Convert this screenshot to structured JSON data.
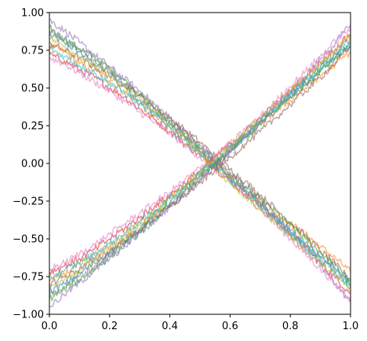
{
  "chart_data": {
    "type": "line",
    "title": "",
    "xlabel": "",
    "ylabel": "",
    "xlim": [
      0,
      1
    ],
    "ylim": [
      -1,
      1
    ],
    "grid": false,
    "legend": "none",
    "line_alpha": 0.55,
    "x_ticks": [
      {
        "value": 0.0,
        "label": "0.0"
      },
      {
        "value": 0.2,
        "label": "0.2"
      },
      {
        "value": 0.4,
        "label": "0.4"
      },
      {
        "value": 0.6,
        "label": "0.6"
      },
      {
        "value": 0.8,
        "label": "0.8"
      },
      {
        "value": 1.0,
        "label": "1.0"
      }
    ],
    "y_ticks": [
      {
        "value": -1.0,
        "label": "−1.00"
      },
      {
        "value": -0.75,
        "label": "−0.75"
      },
      {
        "value": -0.5,
        "label": "−0.50"
      },
      {
        "value": -0.25,
        "label": "−0.25"
      },
      {
        "value": 0.0,
        "label": "0.00"
      },
      {
        "value": 0.25,
        "label": "0.25"
      },
      {
        "value": 0.5,
        "label": "0.50"
      },
      {
        "value": 0.75,
        "label": "0.75"
      },
      {
        "value": 1.0,
        "label": "1.00"
      }
    ],
    "x": [
      0.0,
      0.05,
      0.1,
      0.15,
      0.2,
      0.25,
      0.3,
      0.35,
      0.4,
      0.45,
      0.5,
      0.55,
      0.6,
      0.65,
      0.7,
      0.75,
      0.8,
      0.85,
      0.9,
      0.95,
      1.0
    ],
    "series": [
      {
        "color": "#1f77b4",
        "values": [
          0.85,
          0.8,
          0.74,
          0.66,
          0.6,
          0.51,
          0.42,
          0.34,
          0.26,
          0.17,
          0.08,
          0.0,
          -0.1,
          -0.18,
          -0.26,
          -0.35,
          -0.45,
          -0.54,
          -0.62,
          -0.7,
          -0.78
        ]
      },
      {
        "color": "#ff7f0e",
        "values": [
          0.78,
          0.74,
          0.66,
          0.62,
          0.55,
          0.47,
          0.4,
          0.31,
          0.24,
          0.16,
          0.08,
          -0.01,
          -0.08,
          -0.17,
          -0.25,
          -0.33,
          -0.4,
          -0.47,
          -0.55,
          -0.63,
          -0.72
        ]
      },
      {
        "color": "#2ca02c",
        "values": [
          0.9,
          0.82,
          0.76,
          0.7,
          0.63,
          0.55,
          0.46,
          0.37,
          0.28,
          0.2,
          0.1,
          0.02,
          -0.07,
          -0.15,
          -0.24,
          -0.32,
          -0.41,
          -0.5,
          -0.59,
          -0.68,
          -0.8
        ]
      },
      {
        "color": "#d62728",
        "values": [
          0.72,
          0.68,
          0.62,
          0.57,
          0.5,
          0.44,
          0.36,
          0.29,
          0.21,
          0.13,
          0.05,
          -0.03,
          -0.12,
          -0.2,
          -0.29,
          -0.38,
          -0.47,
          -0.56,
          -0.66,
          -0.76,
          -0.86
        ]
      },
      {
        "color": "#9467bd",
        "values": [
          0.95,
          0.88,
          0.8,
          0.72,
          0.64,
          0.56,
          0.48,
          0.39,
          0.3,
          0.21,
          0.12,
          0.03,
          -0.06,
          -0.16,
          -0.26,
          -0.36,
          -0.46,
          -0.57,
          -0.68,
          -0.8,
          -0.92
        ]
      },
      {
        "color": "#8c564b",
        "values": [
          0.8,
          0.75,
          0.7,
          0.64,
          0.58,
          0.52,
          0.45,
          0.37,
          0.3,
          0.22,
          0.14,
          0.05,
          -0.04,
          -0.12,
          -0.21,
          -0.3,
          -0.39,
          -0.48,
          -0.58,
          -0.67,
          -0.77
        ]
      },
      {
        "color": "#e377c2",
        "values": [
          0.7,
          0.66,
          0.6,
          0.54,
          0.48,
          0.41,
          0.34,
          0.27,
          0.2,
          0.12,
          0.04,
          -0.04,
          -0.12,
          -0.21,
          -0.3,
          -0.4,
          -0.5,
          -0.6,
          -0.7,
          -0.8,
          -0.9
        ]
      },
      {
        "color": "#7f7f7f",
        "values": [
          0.88,
          0.83,
          0.76,
          0.69,
          0.61,
          0.53,
          0.45,
          0.36,
          0.27,
          0.18,
          0.1,
          0.01,
          -0.09,
          -0.18,
          -0.27,
          -0.36,
          -0.44,
          -0.53,
          -0.62,
          -0.72,
          -0.82
        ]
      },
      {
        "color": "#bcbd22",
        "values": [
          0.83,
          0.78,
          0.71,
          0.65,
          0.58,
          0.5,
          0.43,
          0.35,
          0.25,
          0.16,
          0.06,
          -0.03,
          -0.13,
          -0.22,
          -0.31,
          -0.39,
          -0.48,
          -0.57,
          -0.66,
          -0.74,
          -0.84
        ]
      },
      {
        "color": "#17becf",
        "values": [
          0.76,
          0.71,
          0.65,
          0.6,
          0.53,
          0.47,
          0.39,
          0.32,
          0.24,
          0.15,
          0.07,
          -0.02,
          -0.11,
          -0.19,
          -0.28,
          -0.37,
          -0.46,
          -0.55,
          -0.64,
          -0.72,
          -0.81
        ]
      },
      {
        "color": "#1f77b4",
        "values": [
          -0.85,
          -0.8,
          -0.73,
          -0.66,
          -0.59,
          -0.51,
          -0.43,
          -0.34,
          -0.26,
          -0.17,
          -0.08,
          0.0,
          0.09,
          0.18,
          0.26,
          0.35,
          0.44,
          0.52,
          0.61,
          0.7,
          0.78
        ]
      },
      {
        "color": "#ff7f0e",
        "values": [
          -0.78,
          -0.73,
          -0.67,
          -0.61,
          -0.55,
          -0.47,
          -0.39,
          -0.31,
          -0.23,
          -0.15,
          -0.07,
          0.02,
          0.1,
          0.18,
          0.26,
          0.34,
          0.42,
          0.5,
          0.58,
          0.66,
          0.74
        ]
      },
      {
        "color": "#2ca02c",
        "values": [
          -0.9,
          -0.83,
          -0.77,
          -0.7,
          -0.62,
          -0.54,
          -0.46,
          -0.37,
          -0.28,
          -0.19,
          -0.1,
          -0.01,
          0.08,
          0.17,
          0.26,
          0.35,
          0.44,
          0.53,
          0.62,
          0.71,
          0.8
        ]
      },
      {
        "color": "#d62728",
        "values": [
          -0.72,
          -0.68,
          -0.63,
          -0.57,
          -0.5,
          -0.43,
          -0.36,
          -0.28,
          -0.21,
          -0.13,
          -0.05,
          0.04,
          0.13,
          0.21,
          0.3,
          0.39,
          0.48,
          0.57,
          0.67,
          0.76,
          0.86
        ]
      },
      {
        "color": "#9467bd",
        "values": [
          -0.95,
          -0.87,
          -0.79,
          -0.71,
          -0.63,
          -0.55,
          -0.46,
          -0.38,
          -0.29,
          -0.2,
          -0.11,
          -0.02,
          0.07,
          0.17,
          0.27,
          0.37,
          0.47,
          0.58,
          0.69,
          0.8,
          0.92
        ]
      },
      {
        "color": "#8c564b",
        "values": [
          -0.8,
          -0.75,
          -0.7,
          -0.64,
          -0.58,
          -0.51,
          -0.44,
          -0.36,
          -0.29,
          -0.21,
          -0.13,
          -0.04,
          0.04,
          0.13,
          0.21,
          0.3,
          0.39,
          0.48,
          0.57,
          0.67,
          0.77
        ]
      },
      {
        "color": "#e377c2",
        "values": [
          -0.7,
          -0.66,
          -0.6,
          -0.54,
          -0.47,
          -0.4,
          -0.33,
          -0.26,
          -0.19,
          -0.11,
          -0.03,
          0.05,
          0.13,
          0.22,
          0.31,
          0.41,
          0.51,
          0.61,
          0.71,
          0.81,
          0.9
        ]
      },
      {
        "color": "#7f7f7f",
        "values": [
          -0.88,
          -0.82,
          -0.75,
          -0.68,
          -0.6,
          -0.52,
          -0.44,
          -0.35,
          -0.27,
          -0.18,
          -0.09,
          0.0,
          0.1,
          0.19,
          0.28,
          0.37,
          0.45,
          0.54,
          0.63,
          0.73,
          0.83
        ]
      },
      {
        "color": "#bcbd22",
        "values": [
          -0.83,
          -0.77,
          -0.71,
          -0.64,
          -0.57,
          -0.49,
          -0.41,
          -0.33,
          -0.24,
          -0.15,
          -0.06,
          0.03,
          0.12,
          0.21,
          0.3,
          0.39,
          0.48,
          0.57,
          0.66,
          0.75,
          0.85
        ]
      },
      {
        "color": "#17becf",
        "values": [
          -0.76,
          -0.71,
          -0.66,
          -0.6,
          -0.53,
          -0.46,
          -0.39,
          -0.31,
          -0.23,
          -0.15,
          -0.06,
          0.02,
          0.11,
          0.19,
          0.28,
          0.37,
          0.46,
          0.55,
          0.64,
          0.73,
          0.81
        ]
      }
    ]
  }
}
